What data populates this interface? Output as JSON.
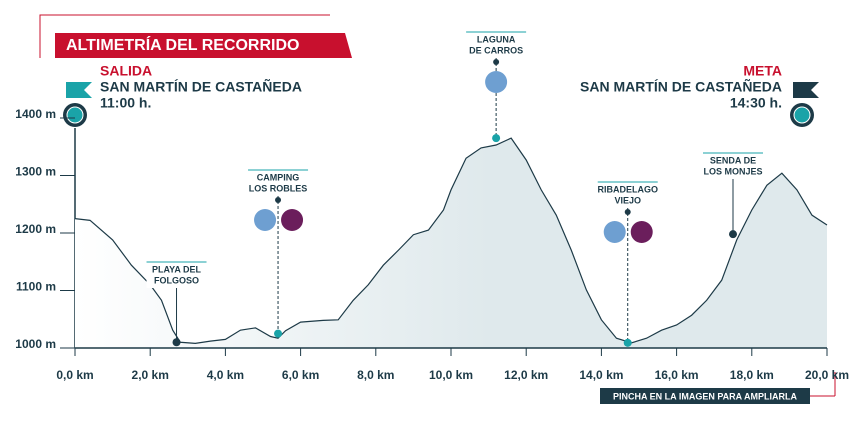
{
  "chart_data": {
    "type": "area",
    "title": "ALTIMETRÍA DEL RECORRIDO",
    "start": {
      "label": "SALIDA",
      "place": "SAN MARTÍN DE CASTAÑEDA",
      "time": "11:00 h."
    },
    "end": {
      "label": "META",
      "place": "SAN MARTÍN DE CASTAÑEDA",
      "time": "14:30 h."
    },
    "footer": "PINCHA EN LA IMAGEN PARA AMPLIARLA",
    "color": "#1d3a47",
    "fill": "#dfe9ec",
    "x": [
      0,
      0.4,
      1.0,
      1.5,
      2.0,
      2.3,
      2.6,
      2.8,
      3.2,
      3.6,
      4.0,
      4.4,
      4.8,
      5.2,
      5.4,
      5.6,
      6.0,
      6.6,
      7.0,
      7.4,
      7.8,
      8.2,
      8.6,
      9.0,
      9.4,
      9.8,
      10.0,
      10.4,
      10.8,
      11.2,
      11.6,
      12.0,
      12.4,
      12.8,
      13.2,
      13.6,
      14.0,
      14.4,
      14.8,
      15.2,
      15.6,
      16.0,
      16.4,
      16.8,
      17.2,
      17.6,
      18.0,
      18.4,
      18.8,
      19.2,
      19.6,
      20.0
    ],
    "values": [
      1225,
      1222,
      1188,
      1144,
      1110,
      1083,
      1031,
      1010,
      1008,
      1012,
      1015,
      1031,
      1035,
      1020,
      1017,
      1030,
      1045,
      1048,
      1049,
      1083,
      1110,
      1144,
      1170,
      1197,
      1205,
      1240,
      1275,
      1330,
      1348,
      1353,
      1365,
      1327,
      1275,
      1231,
      1170,
      1101,
      1049,
      1017,
      1009,
      1017,
      1031,
      1040,
      1057,
      1083,
      1118,
      1188,
      1240,
      1283,
      1304,
      1275,
      1231,
      1214
    ],
    "xlim": [
      0,
      20
    ],
    "ylim": [
      1000,
      1400
    ],
    "xticks": [
      {
        "value": 0,
        "label": "0,0 km"
      },
      {
        "value": 2,
        "label": "2,0 km"
      },
      {
        "value": 4,
        "label": "4,0 km"
      },
      {
        "value": 6,
        "label": "6,0 km"
      },
      {
        "value": 8,
        "label": "8,0 km"
      },
      {
        "value": 10,
        "label": "10,0 km"
      },
      {
        "value": 12,
        "label": "12,0 km"
      },
      {
        "value": 14,
        "label": "14,0 km"
      },
      {
        "value": 16,
        "label": "16,0 km"
      },
      {
        "value": 18,
        "label": "18,0 km"
      },
      {
        "value": 20,
        "label": "20,0 km"
      }
    ],
    "yticks": [
      {
        "value": 1000,
        "label": "1000 m"
      },
      {
        "value": 1100,
        "label": "1100 m"
      },
      {
        "value": 1200,
        "label": "1200 m"
      },
      {
        "value": 1300,
        "label": "1300 m"
      },
      {
        "value": 1400,
        "label": "1400 m"
      }
    ],
    "annotations": [
      {
        "lines": [
          "PLAYA DEL",
          "FOLGOSO"
        ],
        "x": 2.7,
        "y": 1010,
        "point_color": "#1d3a47"
      },
      {
        "lines": [
          "CAMPING",
          "LOS ROBLES"
        ],
        "x": 5.4,
        "y": 1025,
        "point_color": "#1aa3a8"
      },
      {
        "lines": [
          "LAGUNA",
          "DE CARROS"
        ],
        "x": 11.2,
        "y": 1365,
        "point_color": "#1aa3a8"
      },
      {
        "lines": [
          "RIBADELAGO",
          "VIEJO"
        ],
        "x": 14.7,
        "y": 1009,
        "point_color": "#1aa3a8"
      },
      {
        "lines": [
          "SENDA DE",
          "LOS MONJES"
        ],
        "x": 17.5,
        "y": 1198,
        "point_color": "#1d3a47"
      }
    ]
  }
}
